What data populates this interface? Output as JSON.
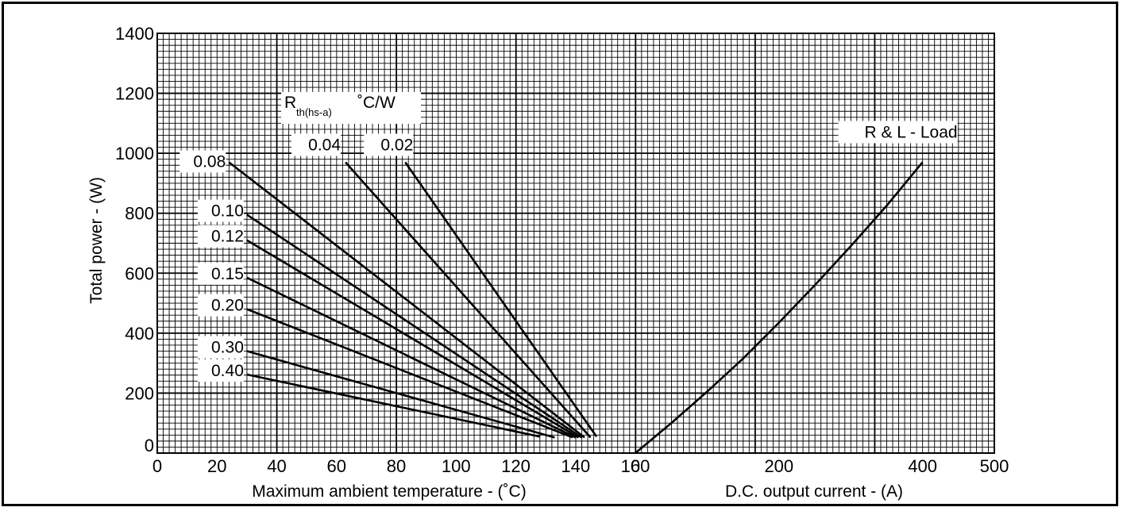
{
  "chart_data": {
    "type": "line",
    "ylabel": "Total power - (W)",
    "ylim": [
      0,
      1400
    ],
    "y_ticks": [
      "0",
      "200",
      "400",
      "600",
      "800",
      "1000",
      "1200",
      "1400"
    ],
    "grid": true,
    "panels": [
      {
        "name": "left",
        "xlabel": "Maximum ambient temperature - (˚C)",
        "xlim": [
          0,
          160
        ],
        "x_ticks": [
          "0",
          "20",
          "40",
          "60",
          "80",
          "100",
          "120",
          "140",
          "160"
        ],
        "legend_title_main": "R",
        "legend_title_sub": "th(hs-a)",
        "legend_title_unit": "˚C/W",
        "series": [
          {
            "name": "0.02",
            "x": [
              83,
              147
            ],
            "y": [
              970,
              55
            ]
          },
          {
            "name": "0.04",
            "x": [
              63,
              145
            ],
            "y": [
              970,
              52
            ]
          },
          {
            "name": "0.08",
            "x": [
              24,
              143
            ],
            "y": [
              970,
              52
            ]
          },
          {
            "name": "0.10",
            "x": [
              30,
              142
            ],
            "y": [
              795,
              52
            ]
          },
          {
            "name": "0.12",
            "x": [
              30,
              141
            ],
            "y": [
              710,
              52
            ]
          },
          {
            "name": "0.15",
            "x": [
              30,
              140
            ],
            "y": [
              585,
              52
            ]
          },
          {
            "name": "0.20",
            "x": [
              30,
              139
            ],
            "y": [
              480,
              52
            ]
          },
          {
            "name": "0.30",
            "x": [
              30,
              133
            ],
            "y": [
              340,
              52
            ]
          },
          {
            "name": "0.40",
            "x": [
              30,
              128
            ],
            "y": [
              262,
              55
            ]
          }
        ]
      },
      {
        "name": "right",
        "xlabel": "D.C. output current - (A)",
        "xlim": [
          0,
          500
        ],
        "x_ticks": [
          "0",
          "200",
          "400",
          "500"
        ],
        "series": [
          {
            "name": "R & L - Load",
            "x": [
              0,
              50,
              100,
              150,
              200,
              250,
              300,
              350,
              400
            ],
            "y": [
              0,
              100,
              205,
              315,
              435,
              560,
              690,
              825,
              970
            ]
          }
        ]
      }
    ]
  }
}
